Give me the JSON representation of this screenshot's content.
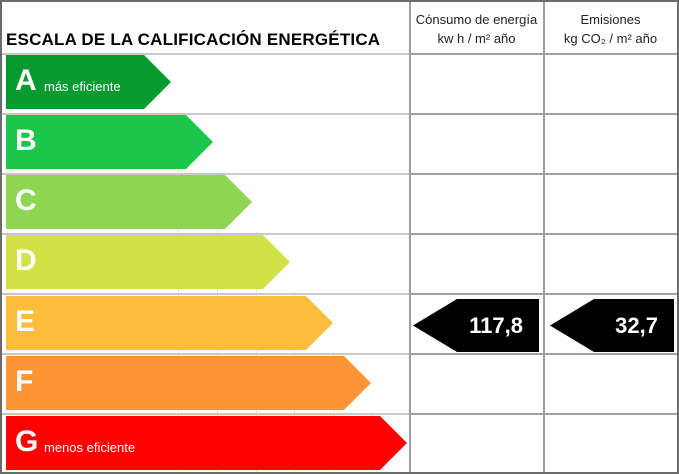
{
  "title": "ESCALA DE LA CALIFICACIÓN ENERGÉTICA",
  "columns": {
    "consumo": {
      "line1": "Cónsumo de energía",
      "line2": "kw h / m² año"
    },
    "emisiones": {
      "line1": "Emisiones",
      "line2": "kg CO₂ / m² año"
    }
  },
  "ratings": [
    {
      "letter": "A",
      "sub": "más eficiente",
      "color": "#079a2e"
    },
    {
      "letter": "B",
      "sub": "",
      "color": "#1cc64a"
    },
    {
      "letter": "C",
      "sub": "",
      "color": "#8ed552"
    },
    {
      "letter": "D",
      "sub": "",
      "color": "#d2e246"
    },
    {
      "letter": "E",
      "sub": "",
      "color": "#fbbd3b"
    },
    {
      "letter": "F",
      "sub": "",
      "color": "#fd9536"
    },
    {
      "letter": "G",
      "sub": "menos eficiente",
      "color": "#fe0000"
    }
  ],
  "current": {
    "rating": "E",
    "consumo": "117,8",
    "emisiones": "32,7"
  }
}
